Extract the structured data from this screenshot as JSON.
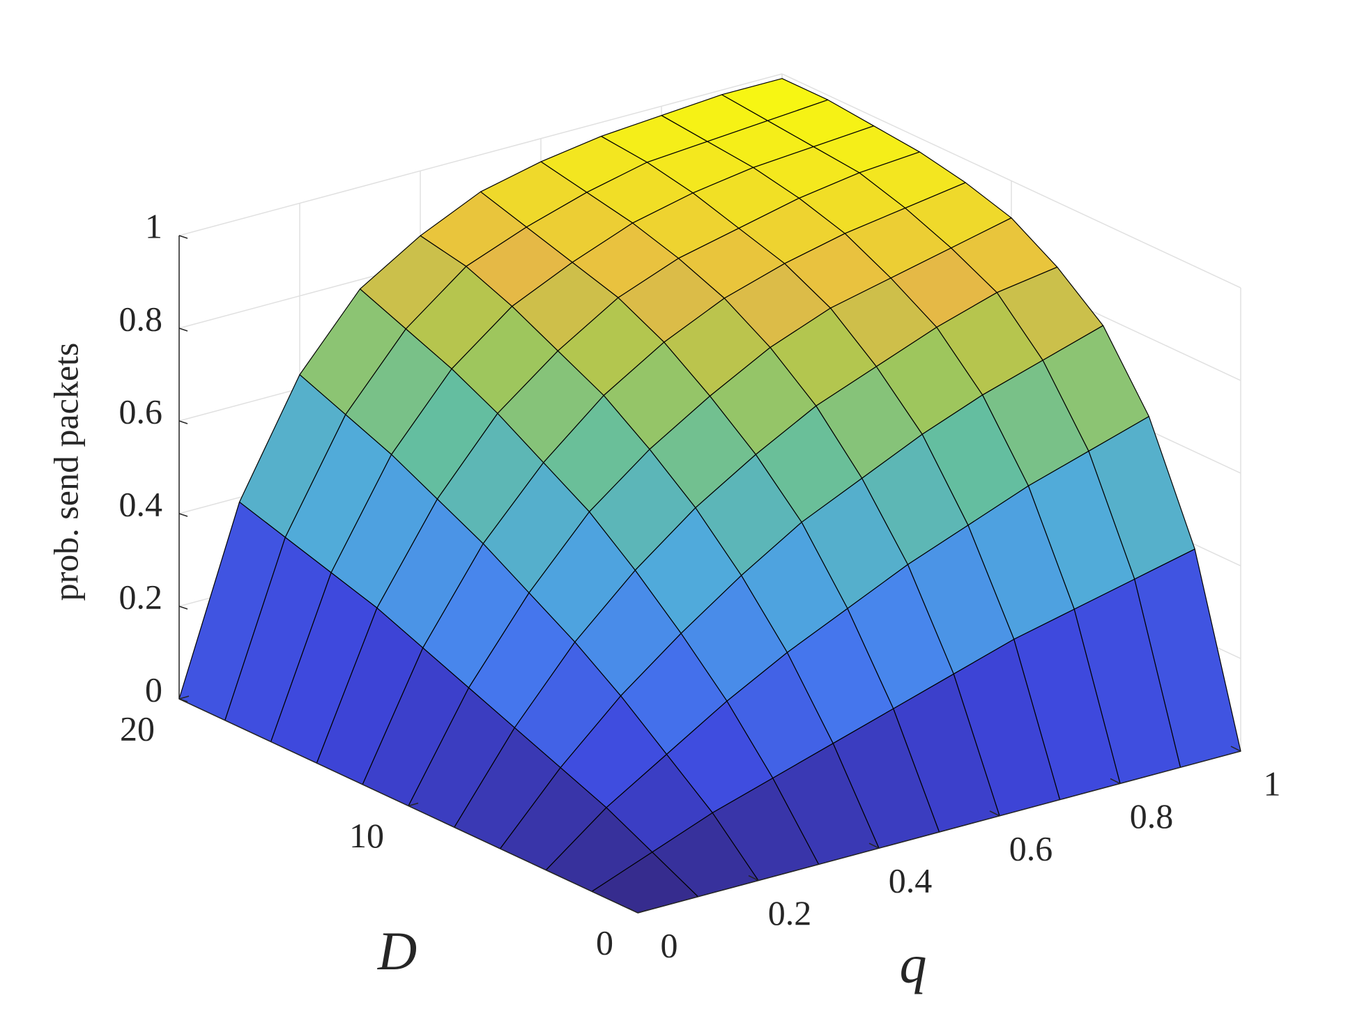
{
  "chart_data": {
    "type": "surface",
    "xlabel": "D",
    "ylabel": "q",
    "zlabel": "prob. send packets",
    "x": [
      0,
      2,
      4,
      6,
      8,
      10,
      12,
      14,
      16,
      18,
      20
    ],
    "y": [
      0,
      0.1,
      0.2,
      0.3,
      0.4,
      0.5,
      0.6,
      0.7,
      0.8,
      0.9,
      1
    ],
    "z": [
      [
        0,
        0,
        0,
        0,
        0,
        0,
        0,
        0,
        0,
        0,
        0
      ],
      [
        0,
        0.05,
        0.1,
        0.14,
        0.18,
        0.22,
        0.26,
        0.3,
        0.33,
        0.36,
        0.39
      ],
      [
        0,
        0.1,
        0.18,
        0.26,
        0.33,
        0.39,
        0.45,
        0.5,
        0.55,
        0.59,
        0.63
      ],
      [
        0,
        0.14,
        0.26,
        0.36,
        0.45,
        0.53,
        0.59,
        0.65,
        0.7,
        0.74,
        0.78
      ],
      [
        0,
        0.18,
        0.33,
        0.45,
        0.55,
        0.63,
        0.7,
        0.75,
        0.8,
        0.84,
        0.86
      ],
      [
        0,
        0.22,
        0.39,
        0.53,
        0.63,
        0.71,
        0.78,
        0.83,
        0.86,
        0.89,
        0.92
      ],
      [
        0,
        0.26,
        0.45,
        0.59,
        0.7,
        0.78,
        0.84,
        0.88,
        0.91,
        0.93,
        0.95
      ],
      [
        0,
        0.3,
        0.5,
        0.65,
        0.75,
        0.83,
        0.88,
        0.91,
        0.94,
        0.96,
        0.97
      ],
      [
        0,
        0.33,
        0.55,
        0.7,
        0.8,
        0.86,
        0.91,
        0.94,
        0.96,
        0.97,
        0.98
      ],
      [
        0,
        0.36,
        0.59,
        0.74,
        0.84,
        0.89,
        0.93,
        0.96,
        0.97,
        0.98,
        0.99
      ],
      [
        0,
        0.39,
        0.63,
        0.78,
        0.86,
        0.92,
        0.95,
        0.97,
        0.98,
        0.99,
        0.99
      ]
    ],
    "xlim": [
      0,
      20
    ],
    "ylim": [
      0,
      1
    ],
    "zlim": [
      0,
      1
    ],
    "xticks": [
      0,
      10,
      20
    ],
    "yticks": [
      0,
      0.2,
      0.4,
      0.6,
      0.8,
      1
    ],
    "zticks": [
      0,
      0.2,
      0.4,
      0.6,
      0.8,
      1
    ],
    "grid": true,
    "colormap": "parula",
    "edgecolor": "#000000"
  }
}
